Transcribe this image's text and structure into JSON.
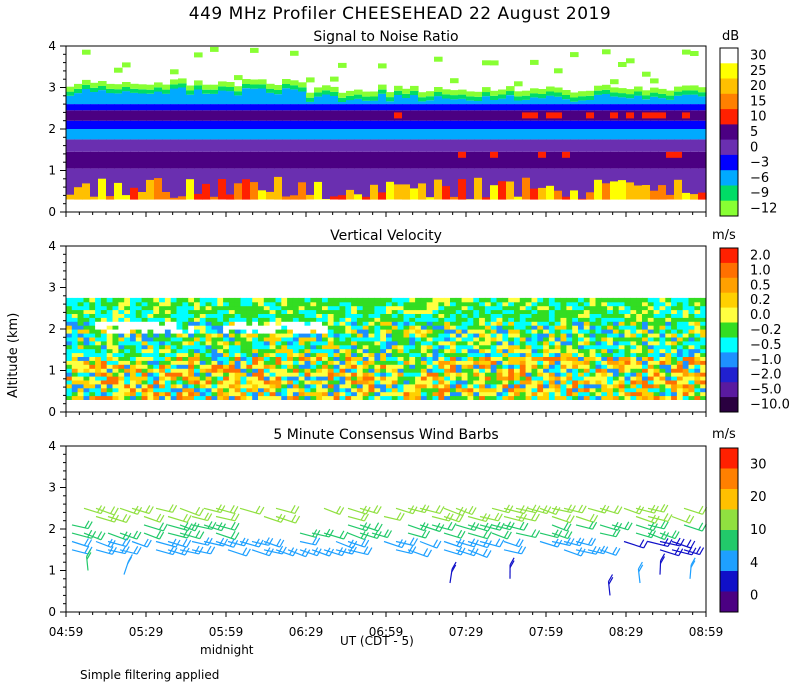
{
  "figure": {
    "title": "449 MHz Profiler CHEESEHEAD 22 August 2019",
    "ylabel": "Altitude (km)",
    "xlabel": "UT  (CDT - 5)",
    "midnight_label": "midnight",
    "footer": "Simple filtering applied"
  },
  "chart_data": [
    {
      "type": "heatmap",
      "title": "Signal to Noise Ratio",
      "unit": "dB",
      "ylim": [
        0,
        4
      ],
      "yticks": [
        "0",
        "1",
        "2",
        "3",
        "4"
      ],
      "xticks": [
        "04:59",
        "05:29",
        "05:59",
        "06:29",
        "06:59",
        "07:29",
        "07:59",
        "08:29",
        "08:59"
      ],
      "colorbar_labels": [
        "30",
        "25",
        "20",
        "15",
        "10",
        "5",
        "0",
        "−3",
        "−6",
        "−9",
        "−12"
      ],
      "colors": [
        "#ffffff",
        "#ffff00",
        "#ffc000",
        "#ff8000",
        "#ff2000",
        "#4b0082",
        "#6a2fb0",
        "#0000ff",
        "#00aaff",
        "#00dd66",
        "#88ff33"
      ]
    },
    {
      "type": "heatmap",
      "title": "Vertical Velocity",
      "unit": "m/s",
      "ylim": [
        0,
        4
      ],
      "yticks": [
        "0",
        "1",
        "2",
        "3",
        "4"
      ],
      "xticks": [
        "04:59",
        "05:29",
        "05:59",
        "06:29",
        "06:59",
        "07:29",
        "07:59",
        "08:29",
        "08:59"
      ],
      "colorbar_labels": [
        "2.0",
        "1.0",
        "0.5",
        "0.2",
        "0.0",
        "−0.2",
        "−0.5",
        "−1.0",
        "−2.0",
        "−5.0",
        "−10.0"
      ],
      "colors": [
        "#ff2000",
        "#ff7000",
        "#ffa000",
        "#ffd000",
        "#ffff40",
        "#33dd22",
        "#00ffff",
        "#1e90ff",
        "#2020d0",
        "#5a1aa0",
        "#2a0040"
      ]
    },
    {
      "type": "scatter",
      "title": "5 Minute Consensus Wind Barbs",
      "unit": "m/s",
      "ylim": [
        0,
        4
      ],
      "yticks": [
        "0",
        "1",
        "2",
        "3",
        "4"
      ],
      "xticks": [
        "04:59",
        "05:29",
        "05:59",
        "06:29",
        "06:59",
        "07:29",
        "07:59",
        "08:29",
        "08:59"
      ],
      "colorbar_labels": [
        "30",
        "20",
        "10",
        "4",
        "0"
      ],
      "colors": [
        "#ff2000",
        "#ff8000",
        "#ffc000",
        "#90e040",
        "#22c96a",
        "#1ea0ff",
        "#1010c8",
        "#4b0082"
      ]
    }
  ]
}
